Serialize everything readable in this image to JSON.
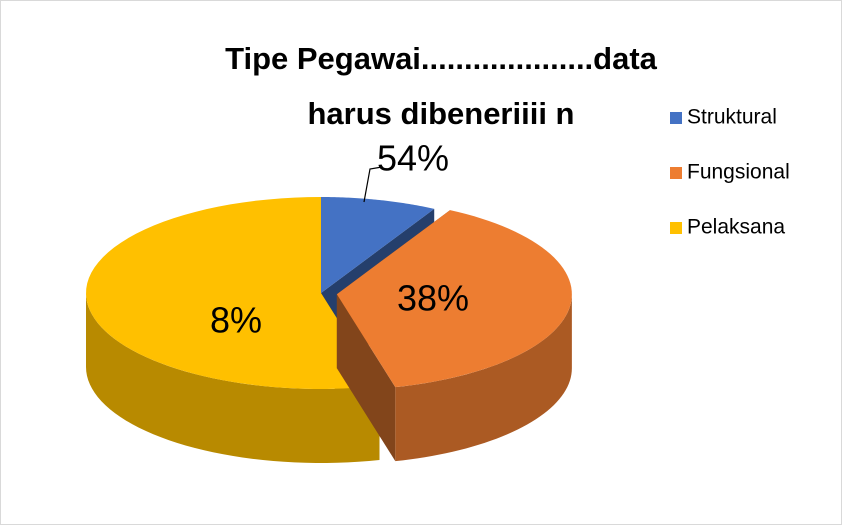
{
  "chart_data": {
    "type": "pie",
    "title": "Tipe Pegawai....................data harus dibeneriiii n",
    "categories": [
      "Struktural",
      "Fungsional",
      "Pelaksana"
    ],
    "values": [
      8,
      38,
      54
    ],
    "value_labels": [
      "8%",
      "38%",
      "54%"
    ],
    "colors": [
      "#4472c4",
      "#ed7d31",
      "#ffc000"
    ],
    "legend": "right"
  }
}
